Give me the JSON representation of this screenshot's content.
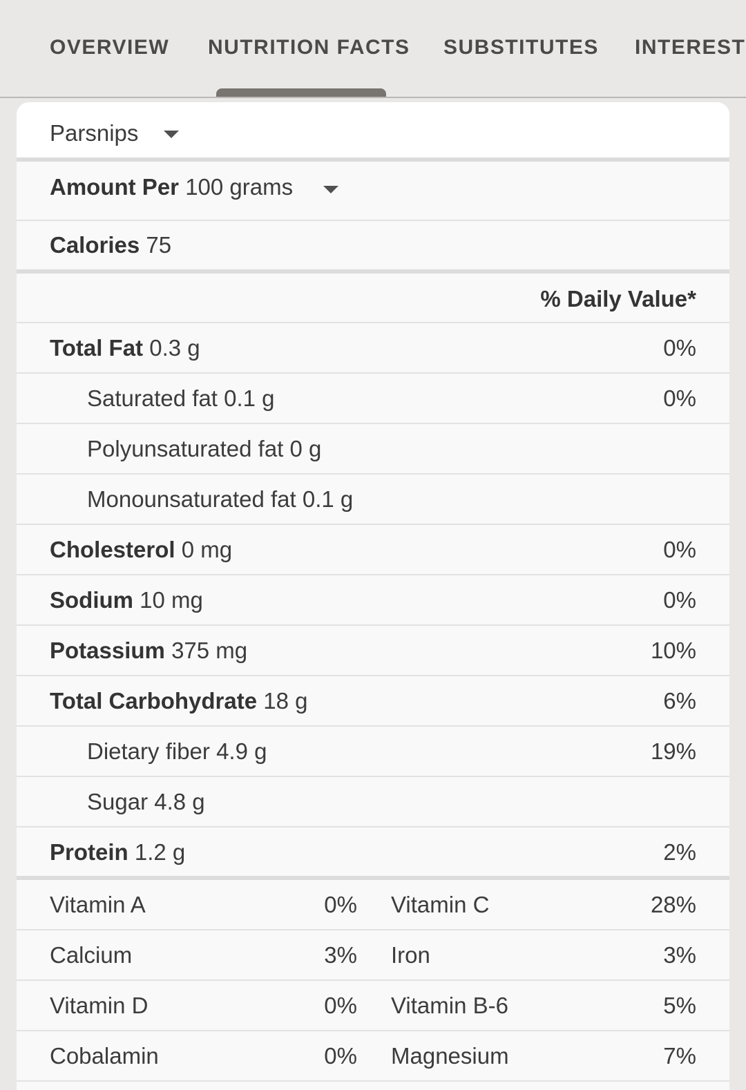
{
  "tabs": [
    {
      "label": "OVERVIEW"
    },
    {
      "label": "NUTRITION FACTS",
      "active": true
    },
    {
      "label": "SUBSTITUTES"
    },
    {
      "label": "INTERESTI"
    }
  ],
  "food": {
    "name": "Parsnips"
  },
  "serving": {
    "prefix": "Amount Per",
    "value": "100 grams"
  },
  "calories": {
    "label": "Calories",
    "value": "75"
  },
  "daily_value_header": "% Daily Value*",
  "nutrients": [
    {
      "label": "Total Fat",
      "amount": "0.3 g",
      "dv": "0%"
    },
    {
      "label": "Saturated fat",
      "amount": "0.1 g",
      "dv": "0%"
    },
    {
      "label": "Polyunsaturated fat",
      "amount": "0 g",
      "dv": ""
    },
    {
      "label": "Monounsaturated fat",
      "amount": "0.1 g",
      "dv": ""
    },
    {
      "label": "Cholesterol",
      "amount": "0 mg",
      "dv": "0%"
    },
    {
      "label": "Sodium",
      "amount": "10 mg",
      "dv": "0%"
    },
    {
      "label": "Potassium",
      "amount": "375 mg",
      "dv": "10%"
    },
    {
      "label": "Total Carbohydrate",
      "amount": "18 g",
      "dv": "6%"
    },
    {
      "label": "Dietary fiber",
      "amount": "4.9 g",
      "dv": "19%"
    },
    {
      "label": "Sugar",
      "amount": "4.8 g",
      "dv": ""
    },
    {
      "label": "Protein",
      "amount": "1.2 g",
      "dv": "2%"
    }
  ],
  "vitamins": [
    {
      "name1": "Vitamin A",
      "pct1": "0%",
      "name2": "Vitamin C",
      "pct2": "28%"
    },
    {
      "name1": "Calcium",
      "pct1": "3%",
      "name2": "Iron",
      "pct2": "3%"
    },
    {
      "name1": "Vitamin D",
      "pct1": "0%",
      "name2": "Vitamin B-6",
      "pct2": "5%"
    },
    {
      "name1": "Cobalamin",
      "pct1": "0%",
      "name2": "Magnesium",
      "pct2": "7%"
    }
  ],
  "colors": {
    "tab_indicator": "#787470",
    "background": "#e9e8e6",
    "card": "#f9f9f9"
  }
}
